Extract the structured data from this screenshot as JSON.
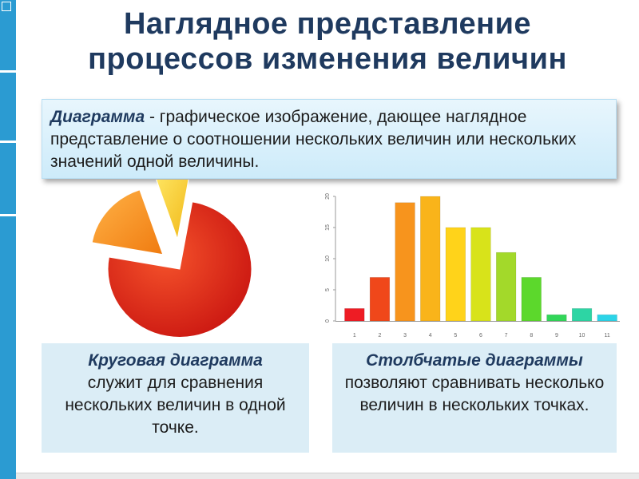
{
  "title_line1": "Наглядное представление",
  "title_line2": "процессов изменения величин",
  "definition": {
    "term": "Диаграмма",
    "text": " - графическое изображение, дающее наглядное представление о соотношении нескольких величин или нескольких значений одной величины."
  },
  "pie_caption": {
    "title": "Круговая диаграмма",
    "body": "служит для сравнения нескольких величин в одной точке."
  },
  "bar_caption": {
    "title": "Столбчатые диаграммы",
    "body": "позволяют сравнивать несколько величин в нескольких точках."
  },
  "colors": {
    "accent_blue": "#2b9bd2",
    "title_navy": "#1f3a5f",
    "box_light": "#dbedf6"
  },
  "chart_data": [
    {
      "type": "pie",
      "values": [
        75,
        17,
        8
      ],
      "colors": [
        "#e8231c",
        "#f89421",
        "#f6d321"
      ],
      "grid": false,
      "legend": "none"
    },
    {
      "type": "bar",
      "categories": [
        "1",
        "2",
        "3",
        "4",
        "5",
        "6",
        "7",
        "8",
        "9",
        "10",
        "11"
      ],
      "values": [
        2,
        7,
        19,
        20,
        15,
        15,
        11,
        7,
        1,
        2,
        1
      ],
      "ylim": [
        0,
        20
      ],
      "yticks": [
        "0",
        "5",
        "10",
        "15",
        "20"
      ],
      "grid": false,
      "legend": "none"
    }
  ]
}
